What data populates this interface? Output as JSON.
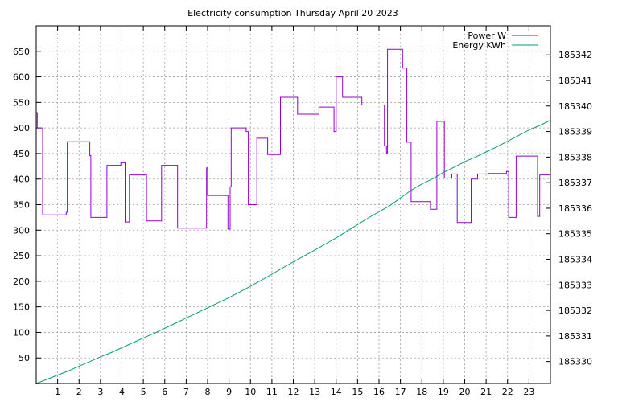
{
  "chart_data": {
    "type": "line",
    "title": "Electricity consumption Thursday April 20 2023",
    "xlabel": "",
    "ylabel": "",
    "y2label": "",
    "grid": true,
    "legend_position": "top-right",
    "xlim": [
      0,
      24
    ],
    "ylim": [
      0,
      700
    ],
    "y2lim": [
      185329.14,
      185343.14
    ],
    "x_ticks": [
      1,
      2,
      3,
      4,
      5,
      6,
      7,
      8,
      9,
      10,
      11,
      12,
      13,
      14,
      15,
      16,
      17,
      18,
      19,
      20,
      21,
      22,
      23
    ],
    "y_ticks": [
      50,
      100,
      150,
      200,
      250,
      300,
      350,
      400,
      450,
      500,
      550,
      600,
      650
    ],
    "y2_ticks": [
      185330,
      185331,
      185332,
      185333,
      185334,
      185335,
      185336,
      185337,
      185338,
      185339,
      185340,
      185341,
      185342
    ],
    "series": [
      {
        "name": "Power W",
        "axis": "left",
        "color": "#9400d3",
        "step": true,
        "x": [
          0,
          0.05,
          0.3,
          0.35,
          1.4,
          1.45,
          2.5,
          2.55,
          2.65,
          3.2,
          3.3,
          3.85,
          3.95,
          4.1,
          4.15,
          4.25,
          4.35,
          4.95,
          5.05,
          5.15,
          5.25,
          5.85,
          5.95,
          6.6,
          6.7,
          7.95,
          8.0,
          8.95,
          9.05,
          9.1,
          9.8,
          9.9,
          10.3,
          10.8,
          10.85,
          11.4,
          12.2,
          13.2,
          13.9,
          14.0,
          14.3,
          15.2,
          16.25,
          16.35,
          16.4,
          17.1,
          17.3,
          17.5,
          18.4,
          18.7,
          19.05,
          19.4,
          19.65,
          19.95,
          20.3,
          20.6,
          21.1,
          21.8,
          21.95,
          22.05,
          22.4,
          22.9,
          23.4,
          23.5,
          24.0
        ],
        "values": [
          530,
          500,
          330,
          330,
          335,
          473,
          446,
          325,
          325,
          325,
          427,
          427,
          432,
          432,
          316,
          316,
          408,
          408,
          408,
          318,
          318,
          427,
          427,
          304,
          304,
          422,
          368,
          302,
          385,
          500,
          493,
          350,
          480,
          448,
          448,
          560,
          527,
          541,
          493,
          600,
          560,
          545,
          465,
          450,
          654,
          617,
          472,
          356,
          341,
          513,
          402,
          410,
          315,
          315,
          400,
          410,
          411,
          411,
          415,
          325,
          445,
          445,
          327,
          408,
          408
        ]
      },
      {
        "name": "Energy KWh",
        "axis": "right",
        "color": "#009e73",
        "step": false,
        "x": [
          0,
          0.5,
          1,
          1.5,
          2,
          2.5,
          3,
          3.5,
          4,
          4.5,
          5,
          5.5,
          6,
          6.5,
          7,
          7.5,
          8,
          8.5,
          9,
          9.5,
          10,
          10.5,
          11,
          11.5,
          12,
          12.5,
          13,
          13.5,
          14,
          14.5,
          15,
          15.5,
          16,
          16.5,
          17,
          17.5,
          18,
          18.5,
          19,
          19.5,
          20,
          20.5,
          21,
          21.5,
          22,
          22.5,
          23,
          23.5,
          24
        ],
        "values": [
          185329.14,
          185329.3,
          185329.47,
          185329.63,
          185329.82,
          185330.0,
          185330.18,
          185330.35,
          185330.54,
          185330.73,
          185330.92,
          185331.1,
          185331.3,
          185331.5,
          185331.7,
          185331.9,
          185332.1,
          185332.3,
          185332.5,
          185332.72,
          185332.95,
          185333.18,
          185333.42,
          185333.66,
          185333.9,
          185334.13,
          185334.36,
          185334.6,
          185334.84,
          185335.1,
          185335.36,
          185335.62,
          185335.86,
          185336.1,
          185336.4,
          185336.7,
          185336.95,
          185337.15,
          185337.4,
          185337.6,
          185337.82,
          185338.0,
          185338.2,
          185338.4,
          185338.62,
          185338.84,
          185339.06,
          185339.24,
          185339.44
        ]
      }
    ]
  }
}
